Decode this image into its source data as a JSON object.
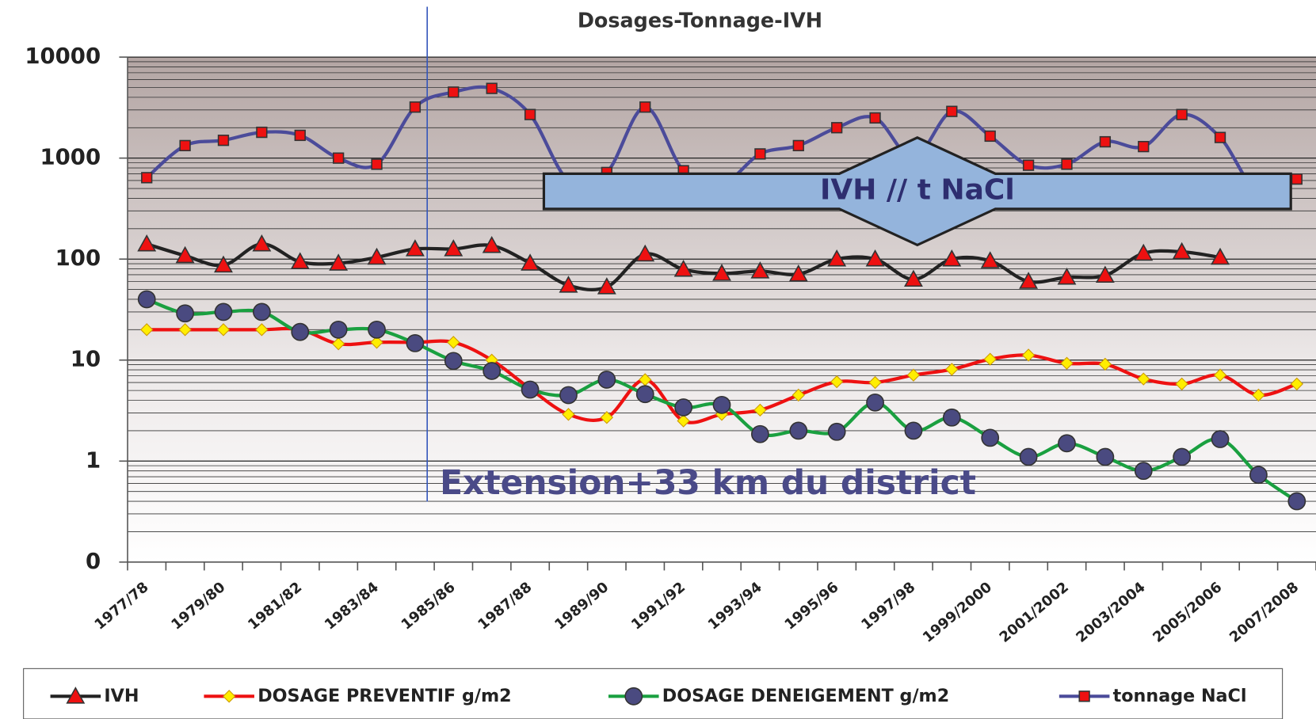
{
  "chart_data": {
    "type": "line",
    "title": "Dosages-Tonnage-IVH",
    "categories": [
      "1977/78",
      null,
      "1979/80",
      null,
      "1981/82",
      null,
      "1983/84",
      null,
      "1985/86",
      null,
      "1987/88",
      null,
      "1989/90",
      null,
      "1991/92",
      null,
      "1993/94",
      null,
      "1995/96",
      null,
      "1997/98",
      null,
      "1999/2000",
      null,
      "2001/2002",
      null,
      "2003/2004",
      null,
      "2005/2006",
      null,
      "2007/2008"
    ],
    "ylim": [
      0.1,
      10000
    ],
    "log_scale": true,
    "grid": true,
    "minor_grid": true,
    "legend": "bottom",
    "yticks": [
      {
        "value": 0.1,
        "label": "0"
      },
      1,
      10,
      100,
      1000,
      10000
    ],
    "annotations": [
      "IVH // t NaCl",
      "Extension+33 km du district"
    ],
    "series": [
      {
        "name": "IVH",
        "color": "#222222",
        "marker": "triangle",
        "marker_color": "#ee1111",
        "values": [
          141,
          108,
          87,
          141,
          94,
          91,
          104,
          126,
          126,
          136,
          91,
          55,
          53,
          112,
          79,
          72,
          76,
          71,
          100,
          100,
          63,
          100,
          96,
          60,
          66,
          69,
          114,
          118,
          104,
          null,
          null
        ]
      },
      {
        "name": "DOSAGE PREVENTIF g/m2",
        "color": "#ee1111",
        "marker": "diamond",
        "marker_color": "#ffee00",
        "values": [
          20,
          20,
          20,
          20,
          20,
          14.5,
          15,
          15,
          15,
          10,
          5.2,
          2.9,
          2.7,
          6.4,
          2.5,
          2.9,
          3.2,
          4.5,
          6.1,
          6,
          7.1,
          8.1,
          10.2,
          11.2,
          9.3,
          9.1,
          6.5,
          5.8,
          7.1,
          4.5,
          5.8
        ]
      },
      {
        "name": "DOSAGE DENEIGEMENT g/m2",
        "color": "#1aa040",
        "marker": "circle",
        "marker_color": "#4a4a80",
        "values": [
          40,
          29,
          30,
          30,
          19,
          20,
          20,
          14.7,
          9.8,
          7.8,
          5.1,
          4.5,
          6.4,
          4.6,
          3.4,
          3.6,
          1.85,
          2.0,
          1.95,
          3.8,
          2.0,
          2.7,
          1.7,
          1.1,
          1.5,
          1.1,
          0.8,
          1.1,
          1.65,
          0.73,
          0.4
        ]
      },
      {
        "name": "tonnage NaCl",
        "color": "#4b4b9a",
        "marker": "square",
        "marker_color": "#ee1111",
        "values": [
          640,
          1330,
          1500,
          1800,
          1680,
          1000,
          870,
          3200,
          4500,
          4900,
          2700,
          600,
          720,
          3200,
          750,
          550,
          1100,
          1330,
          2000,
          2500,
          1000,
          2900,
          1650,
          850,
          870,
          1450,
          1300,
          2700,
          1600,
          450,
          620
        ]
      }
    ]
  }
}
